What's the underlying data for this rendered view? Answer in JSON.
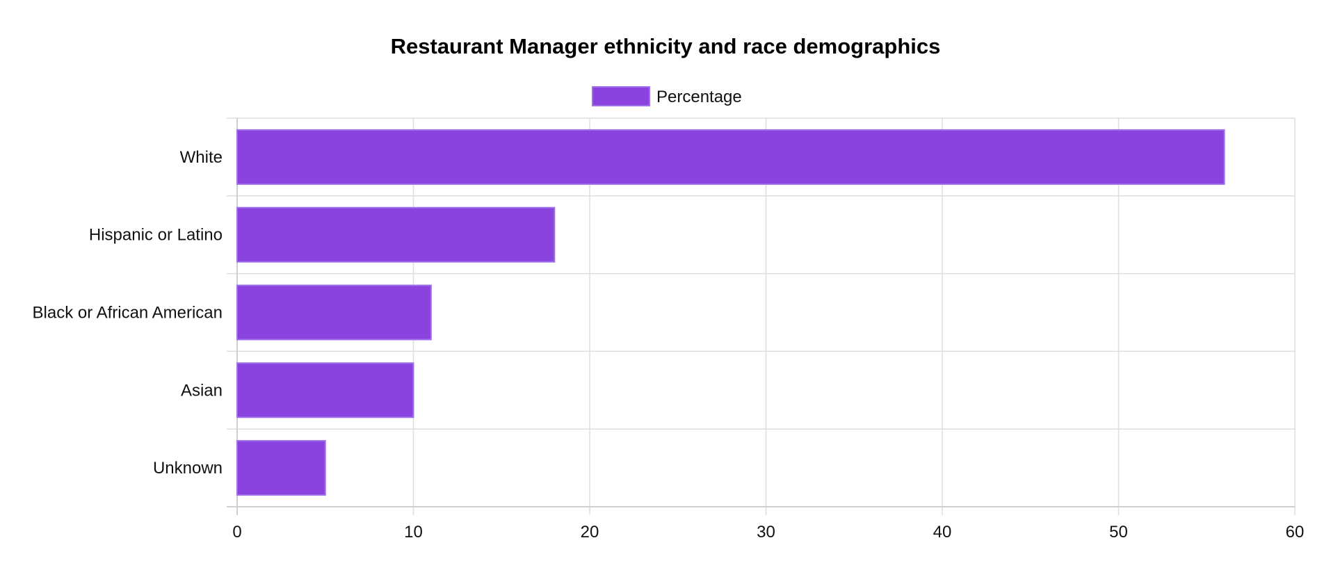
{
  "chart_data": {
    "type": "bar",
    "orientation": "horizontal",
    "title": "Restaurant Manager ethnicity and race demographics",
    "categories": [
      "White",
      "Hispanic or Latino",
      "Black or African American",
      "Asian",
      "Unknown"
    ],
    "series": [
      {
        "name": "Percentage",
        "values": [
          56,
          18,
          11,
          10,
          5
        ]
      }
    ],
    "xlim": [
      0,
      60
    ],
    "x_ticks": [
      0,
      10,
      20,
      30,
      40,
      50,
      60
    ],
    "xlabel": "",
    "ylabel": "",
    "grid": true,
    "legend": "top-center",
    "colors": {
      "bar_fill": "#8a43de",
      "bar_border": "#a070ea",
      "grid": "#dddddd",
      "axis": "#cfcfcf"
    }
  }
}
